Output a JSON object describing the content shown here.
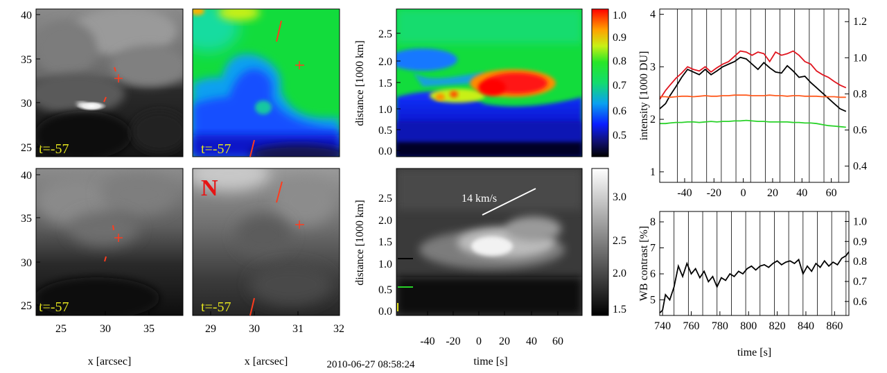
{
  "timestamp": "2010-06-27 08:58:24",
  "colors": {
    "red_curve": "#e0141e",
    "orange_curve": "#ff5a1e",
    "green_curve": "#28d228",
    "black_curve": "#000000",
    "marker": "#ff3c1e",
    "time_label": "#e6e61e",
    "north_label": "#e61414"
  },
  "images": {
    "time_label": "t=-57",
    "north_label": "N",
    "xlabel": "x [arcsec]",
    "left_xticks": [
      "25",
      "30",
      "35"
    ],
    "mid_xticks": [
      "29",
      "30",
      "31",
      "32"
    ],
    "yticks": [
      "25",
      "30",
      "35",
      "40"
    ]
  },
  "timeslice": {
    "top_ylabel": "distance [1000 km]",
    "bottom_ylabel": "distance [1000 km]",
    "yticks": [
      "0.0",
      "0.5",
      "1.0",
      "1.5",
      "2.0",
      "2.5"
    ],
    "xticks": [
      "-40",
      "-20",
      "0",
      "20",
      "40",
      "60"
    ],
    "xlabel": "time [s]",
    "speed_label": "14 km/s",
    "colorbar_top_ticks": [
      "1.0",
      "0.9",
      "0.8",
      "0.7",
      "0.6",
      "0.5"
    ],
    "colorbar_bottom_ticks": [
      "3.0",
      "2.5",
      "2.0",
      "1.5"
    ]
  },
  "chart_data": [
    {
      "type": "line",
      "title": "",
      "xlabel": "",
      "ylabel": "intensity [1000 DU]",
      "xlim": [
        -57,
        72
      ],
      "ylim": [
        0.8,
        4.1
      ],
      "y2lim": [
        0.31,
        1.27
      ],
      "xticks": [
        "-40",
        "-20",
        "0",
        "20",
        "40",
        "60"
      ],
      "yticks": [
        "1",
        "2",
        "3",
        "4"
      ],
      "y2ticks": [
        "0.4",
        "0.6",
        "0.8",
        "1.0",
        "1.2"
      ],
      "vlines": [
        -45,
        -35,
        -25,
        -15,
        -5,
        5,
        15,
        25,
        35,
        45,
        55,
        65
      ],
      "x": [
        -57,
        -53,
        -50,
        -46,
        -42,
        -38,
        -34,
        -30,
        -26,
        -22,
        -18,
        -14,
        -10,
        -6,
        -2,
        2,
        6,
        10,
        14,
        18,
        22,
        26,
        30,
        34,
        38,
        42,
        46,
        50,
        54,
        58,
        62,
        66,
        70
      ],
      "series": [
        {
          "name": "red",
          "axis": "left",
          "values": [
            2.38,
            2.55,
            2.65,
            2.78,
            2.88,
            3.0,
            2.95,
            2.92,
            3.0,
            2.9,
            2.98,
            3.05,
            3.1,
            3.2,
            3.3,
            3.28,
            3.22,
            3.28,
            3.25,
            3.1,
            3.28,
            3.22,
            3.25,
            3.3,
            3.22,
            3.1,
            3.05,
            2.92,
            2.85,
            2.8,
            2.72,
            2.65,
            2.6
          ]
        },
        {
          "name": "black",
          "axis": "left",
          "values": [
            2.2,
            2.3,
            2.45,
            2.62,
            2.8,
            2.95,
            2.9,
            2.85,
            2.95,
            2.85,
            2.92,
            3.0,
            3.05,
            3.1,
            3.18,
            3.15,
            3.05,
            2.95,
            3.08,
            2.98,
            2.9,
            2.88,
            3.02,
            2.92,
            2.8,
            2.82,
            2.7,
            2.6,
            2.5,
            2.4,
            2.3,
            2.2,
            2.15
          ]
        },
        {
          "name": "orange",
          "axis": "left",
          "values": [
            2.43,
            2.43,
            2.42,
            2.43,
            2.44,
            2.44,
            2.43,
            2.44,
            2.45,
            2.44,
            2.44,
            2.45,
            2.45,
            2.46,
            2.46,
            2.46,
            2.45,
            2.45,
            2.45,
            2.46,
            2.45,
            2.45,
            2.44,
            2.45,
            2.45,
            2.44,
            2.44,
            2.44,
            2.43,
            2.43,
            2.43,
            2.42,
            2.42
          ]
        },
        {
          "name": "green",
          "axis": "left",
          "values": [
            1.92,
            1.92,
            1.93,
            1.94,
            1.94,
            1.95,
            1.95,
            1.94,
            1.95,
            1.96,
            1.95,
            1.96,
            1.96,
            1.97,
            1.97,
            1.98,
            1.97,
            1.96,
            1.96,
            1.95,
            1.95,
            1.95,
            1.95,
            1.94,
            1.94,
            1.93,
            1.93,
            1.92,
            1.9,
            1.88,
            1.87,
            1.86,
            1.85
          ]
        }
      ]
    },
    {
      "type": "line",
      "title": "",
      "xlabel": "time [s]",
      "ylabel": "WB contrast [%]",
      "xlim": [
        738,
        870
      ],
      "ylim": [
        4.4,
        8.4
      ],
      "y2lim": [
        0.53,
        1.05
      ],
      "xticks": [
        "740",
        "760",
        "780",
        "800",
        "820",
        "840",
        "860"
      ],
      "yticks": [
        "5",
        "6",
        "7",
        "8"
      ],
      "y2ticks": [
        "0.6",
        "0.7",
        "0.8",
        "0.9",
        "1.0"
      ],
      "vlines": [
        748,
        758,
        768,
        778,
        788,
        798,
        808,
        818,
        828,
        838,
        848,
        858,
        868
      ],
      "x": [
        738,
        740,
        742,
        745,
        748,
        751,
        754,
        757,
        760,
        763,
        766,
        769,
        772,
        775,
        778,
        781,
        784,
        787,
        790,
        793,
        796,
        799,
        802,
        805,
        808,
        811,
        814,
        817,
        820,
        823,
        826,
        829,
        832,
        835,
        838,
        841,
        844,
        847,
        850,
        853,
        856,
        859,
        862,
        865,
        868,
        870
      ],
      "series": [
        {
          "name": "black",
          "axis": "left",
          "values": [
            4.5,
            4.6,
            5.2,
            5.0,
            5.5,
            6.3,
            5.9,
            6.4,
            6.0,
            6.2,
            5.85,
            6.1,
            5.7,
            5.9,
            5.5,
            5.85,
            5.75,
            6.0,
            5.9,
            6.1,
            6.0,
            6.2,
            6.3,
            6.15,
            6.3,
            6.35,
            6.25,
            6.4,
            6.5,
            6.35,
            6.45,
            6.5,
            6.4,
            6.55,
            6.0,
            6.3,
            6.1,
            6.4,
            6.25,
            6.5,
            6.3,
            6.45,
            6.35,
            6.6,
            6.7,
            6.85
          ]
        }
      ]
    }
  ]
}
